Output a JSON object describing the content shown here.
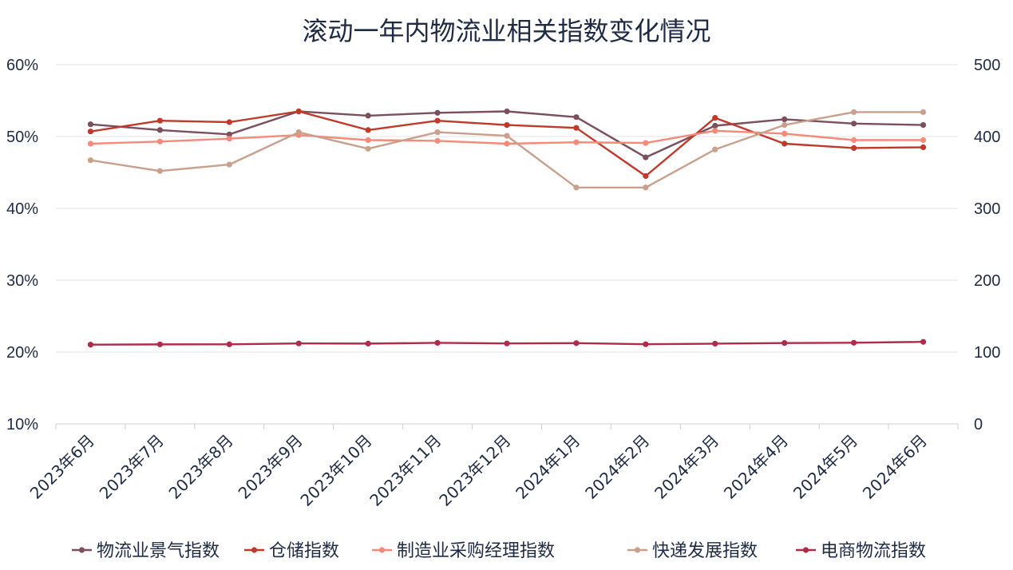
{
  "chart_data": {
    "type": "line",
    "title": "滚动一年内物流业相关指数变化情况",
    "categories": [
      "2023年6月",
      "2023年7月",
      "2023年8月",
      "2023年9月",
      "2023年10月",
      "2023年11月",
      "2023年12月",
      "2024年1月",
      "2024年2月",
      "2024年3月",
      "2024年4月",
      "2024年5月",
      "2024年6月"
    ],
    "y_left": {
      "range": [
        10,
        60
      ],
      "ticks": [
        "10%",
        "20%",
        "30%",
        "40%",
        "50%",
        "60%"
      ],
      "tick_values": [
        10,
        20,
        30,
        40,
        50,
        60
      ]
    },
    "y_right": {
      "range": [
        0,
        500
      ],
      "ticks": [
        "0",
        "100",
        "200",
        "300",
        "400",
        "500"
      ],
      "tick_values": [
        0,
        100,
        200,
        300,
        400,
        500
      ]
    },
    "grid": true,
    "legend": "bottom",
    "series": [
      {
        "name": "物流业景气指数",
        "axis": "left",
        "color": "#7b4f5c",
        "values": [
          51.7,
          50.9,
          50.3,
          53.5,
          52.9,
          53.3,
          53.5,
          52.7,
          47.1,
          51.5,
          52.4,
          51.8,
          51.6
        ]
      },
      {
        "name": "仓储指数",
        "axis": "left",
        "color": "#c0392b",
        "values": [
          50.7,
          52.2,
          52.0,
          53.5,
          50.9,
          52.2,
          51.6,
          51.2,
          44.5,
          52.6,
          49.0,
          48.4,
          48.5
        ]
      },
      {
        "name": "制造业采购经理指数",
        "axis": "left",
        "color": "#f58a7a",
        "values": [
          49.0,
          49.3,
          49.7,
          50.2,
          49.5,
          49.4,
          49.0,
          49.2,
          49.1,
          50.8,
          50.4,
          49.5,
          49.5
        ]
      },
      {
        "name": "快递发展指数",
        "axis": "right",
        "color": "#c9a08c",
        "values": [
          367,
          352,
          361,
          406,
          383,
          406,
          401,
          329,
          329,
          382,
          416,
          434,
          434
        ]
      },
      {
        "name": "电商物流指数",
        "axis": "right",
        "color": "#b02a4a",
        "values": [
          110.3,
          110.7,
          110.8,
          112.0,
          111.8,
          112.8,
          112.0,
          112.4,
          110.9,
          111.7,
          112.6,
          113.0,
          114.2
        ]
      }
    ]
  }
}
